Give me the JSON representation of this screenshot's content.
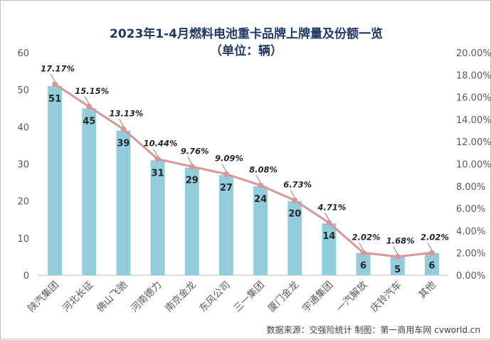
{
  "chart_data": {
    "type": "bar",
    "title": "2023年1-4月燃料电池重卡品牌上牌量及份额一览",
    "subtitle": "（单位：辆）",
    "categories": [
      "陕汽集团",
      "河北长征",
      "佛山飞驰",
      "河南德力",
      "南京金龙",
      "东风公司",
      "三一集团",
      "厦门金龙",
      "宇通集团",
      "一汽解放",
      "庆铃汽车",
      "其他"
    ],
    "series": [
      {
        "type": "bar",
        "values": [
          51,
          45,
          39,
          31,
          29,
          27,
          24,
          20,
          14,
          6,
          5,
          6
        ],
        "color": "#92cddc"
      },
      {
        "type": "line",
        "axis": "right",
        "values": [
          17.17,
          15.15,
          13.13,
          10.44,
          9.76,
          9.09,
          8.08,
          6.73,
          4.71,
          2.02,
          1.68,
          2.02
        ],
        "labels": [
          "17.17%",
          "15.15%",
          "13.13%",
          "10.44%",
          "9.76%",
          "9.09%",
          "8.08%",
          "6.73%",
          "4.71%",
          "2.02%",
          "1.68%",
          "2.02%"
        ],
        "color": "#d99694"
      }
    ],
    "ylim": [
      0,
      60
    ],
    "yticks": [
      "0",
      "10",
      "20",
      "30",
      "40",
      "50",
      "60"
    ],
    "y2lim": [
      0,
      20
    ],
    "y2ticks": [
      "0.00%",
      "2.00%",
      "4.00%",
      "6.00%",
      "8.00%",
      "10.00%",
      "12.00%",
      "14.00%",
      "16.00%",
      "18.00%",
      "20.00%"
    ],
    "grid": false,
    "source": "数据来源：交强险统计  制图：第一商用车网 cvworld.cn"
  }
}
